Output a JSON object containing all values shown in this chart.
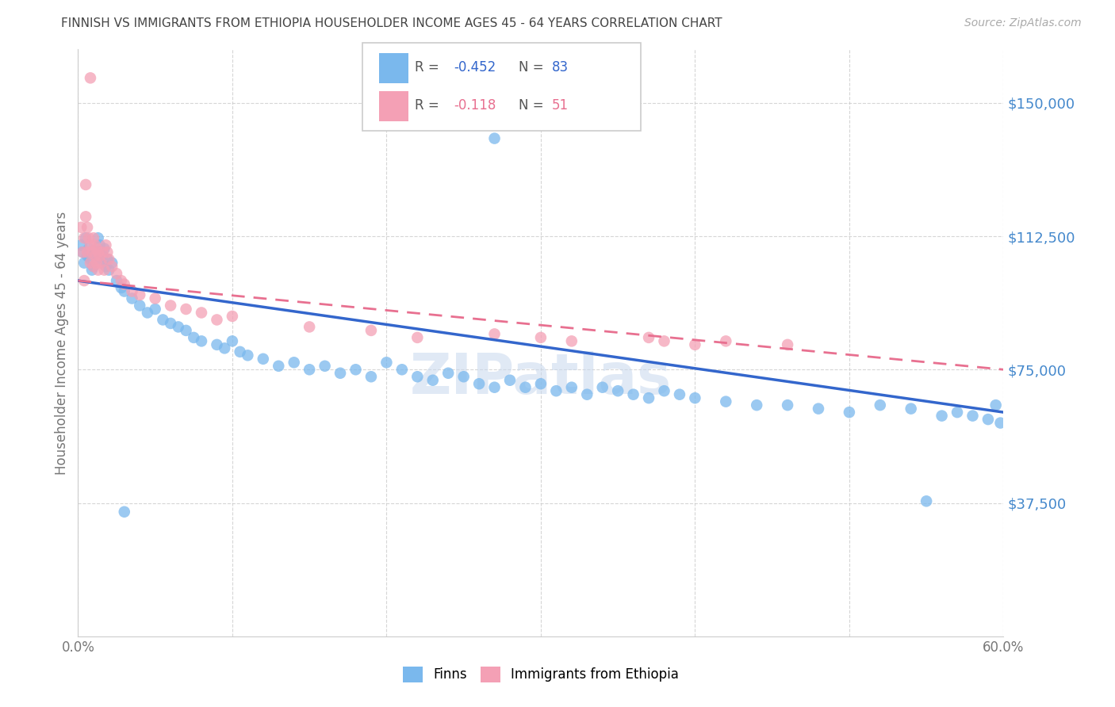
{
  "title": "FINNISH VS IMMIGRANTS FROM ETHIOPIA HOUSEHOLDER INCOME AGES 45 - 64 YEARS CORRELATION CHART",
  "source": "Source: ZipAtlas.com",
  "ylabel": "Householder Income Ages 45 - 64 years",
  "xlim": [
    0.0,
    0.6
  ],
  "ylim": [
    0,
    165000
  ],
  "yticks": [
    37500,
    75000,
    112500,
    150000
  ],
  "ytick_labels": [
    "$37,500",
    "$75,000",
    "$112,500",
    "$150,000"
  ],
  "xtick_labels": [
    "0.0%",
    "",
    "",
    "",
    "",
    "",
    "60.0%"
  ],
  "color_finns": "#7ab8ed",
  "color_ethiopia": "#f4a0b5",
  "color_finns_line": "#3366cc",
  "color_ethiopia_line": "#e87090",
  "color_title": "#444444",
  "color_source": "#aaaaaa",
  "color_ytick_labels": "#4488cc",
  "background_color": "#ffffff",
  "watermark": "ZIPatlas",
  "finns_x": [
    0.002,
    0.003,
    0.004,
    0.005,
    0.006,
    0.007,
    0.008,
    0.009,
    0.01,
    0.011,
    0.012,
    0.013,
    0.014,
    0.015,
    0.016,
    0.017,
    0.018,
    0.019,
    0.02,
    0.022,
    0.025,
    0.028,
    0.03,
    0.035,
    0.04,
    0.045,
    0.05,
    0.055,
    0.06,
    0.065,
    0.07,
    0.075,
    0.08,
    0.09,
    0.095,
    0.1,
    0.105,
    0.11,
    0.12,
    0.13,
    0.14,
    0.15,
    0.16,
    0.17,
    0.18,
    0.19,
    0.2,
    0.21,
    0.22,
    0.23,
    0.24,
    0.25,
    0.26,
    0.27,
    0.28,
    0.29,
    0.3,
    0.31,
    0.32,
    0.33,
    0.34,
    0.35,
    0.36,
    0.37,
    0.38,
    0.39,
    0.4,
    0.42,
    0.44,
    0.46,
    0.48,
    0.5,
    0.52,
    0.54,
    0.56,
    0.57,
    0.58,
    0.59,
    0.595,
    0.598,
    0.27,
    0.55,
    0.03
  ],
  "finns_y": [
    110000,
    108000,
    105000,
    112000,
    107000,
    109000,
    106000,
    103000,
    104000,
    108000,
    106000,
    112000,
    110000,
    105000,
    107000,
    109000,
    104000,
    106000,
    103000,
    105000,
    100000,
    98000,
    97000,
    95000,
    93000,
    91000,
    92000,
    89000,
    88000,
    87000,
    86000,
    84000,
    83000,
    82000,
    81000,
    83000,
    80000,
    79000,
    78000,
    76000,
    77000,
    75000,
    76000,
    74000,
    75000,
    73000,
    77000,
    75000,
    73000,
    72000,
    74000,
    73000,
    71000,
    70000,
    72000,
    70000,
    71000,
    69000,
    70000,
    68000,
    70000,
    69000,
    68000,
    67000,
    69000,
    68000,
    67000,
    66000,
    65000,
    65000,
    64000,
    63000,
    65000,
    64000,
    62000,
    63000,
    62000,
    61000,
    65000,
    60000,
    140000,
    38000,
    35000
  ],
  "ethiopia_x": [
    0.002,
    0.003,
    0.004,
    0.004,
    0.005,
    0.005,
    0.006,
    0.006,
    0.007,
    0.008,
    0.008,
    0.009,
    0.01,
    0.01,
    0.011,
    0.011,
    0.012,
    0.012,
    0.013,
    0.013,
    0.014,
    0.015,
    0.016,
    0.017,
    0.018,
    0.019,
    0.02,
    0.022,
    0.025,
    0.028,
    0.03,
    0.035,
    0.04,
    0.05,
    0.06,
    0.07,
    0.08,
    0.09,
    0.1,
    0.15,
    0.19,
    0.22,
    0.27,
    0.3,
    0.32,
    0.37,
    0.38,
    0.4,
    0.42,
    0.46,
    0.008
  ],
  "ethiopia_y": [
    115000,
    108000,
    112000,
    100000,
    127000,
    118000,
    115000,
    108000,
    112000,
    110000,
    105000,
    108000,
    104000,
    112000,
    110000,
    107000,
    109000,
    105000,
    103000,
    108000,
    107000,
    105000,
    108000,
    103000,
    110000,
    108000,
    106000,
    104000,
    102000,
    100000,
    99000,
    97000,
    96000,
    95000,
    93000,
    92000,
    91000,
    89000,
    90000,
    87000,
    86000,
    84000,
    85000,
    84000,
    83000,
    84000,
    83000,
    82000,
    83000,
    82000,
    157000
  ],
  "finns_line_x0": 0.0,
  "finns_line_y0": 100000,
  "finns_line_x1": 0.6,
  "finns_line_y1": 63000,
  "ethiopia_line_x0": 0.0,
  "ethiopia_line_y0": 100000,
  "ethiopia_line_x1": 0.6,
  "ethiopia_line_y1": 75000
}
